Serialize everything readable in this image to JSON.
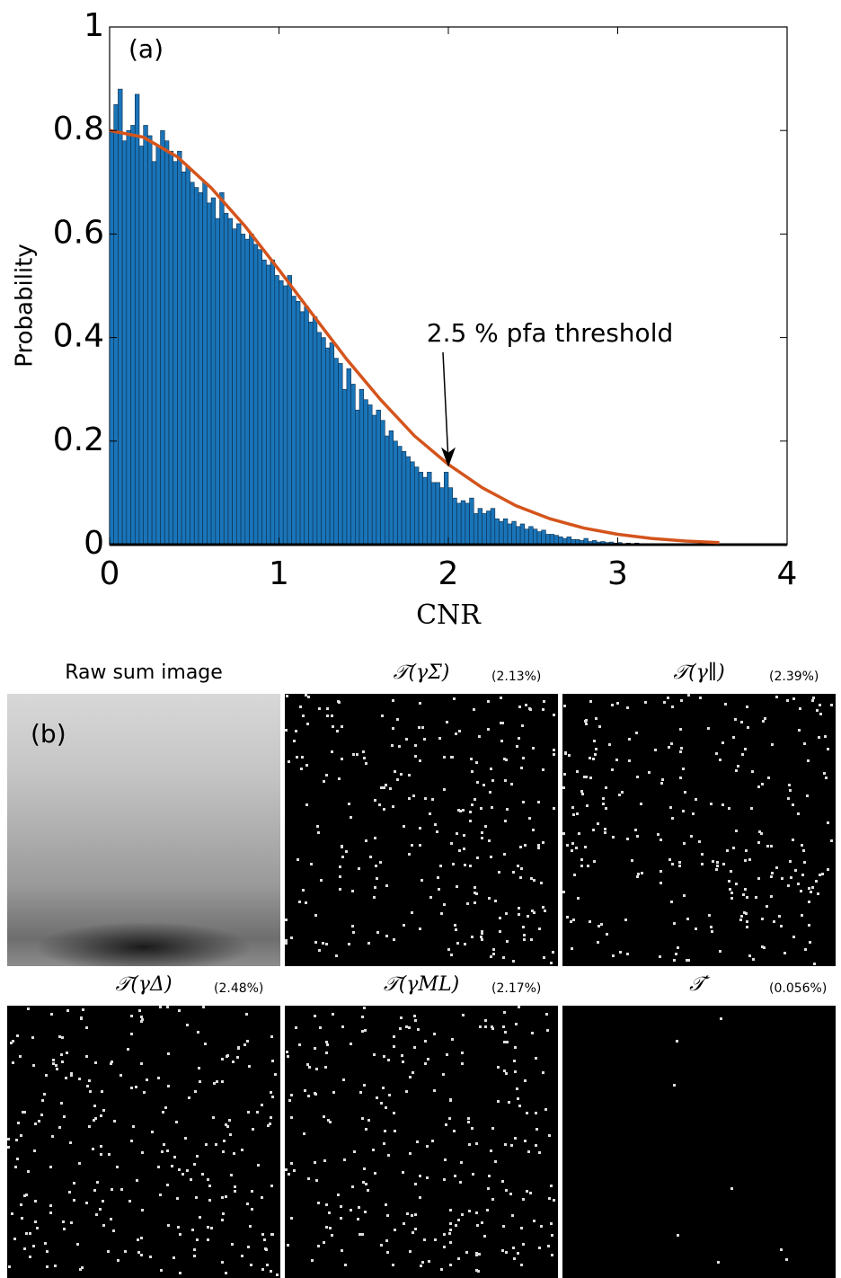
{
  "chart_data": {
    "type": "histogram",
    "panel_label": "(a)",
    "xlabel": "CNR",
    "ylabel": "Probability",
    "annotation": "2.5 % pfa threshold",
    "annotation_xy": [
      2.0,
      0.15
    ],
    "color": "#1a74b8",
    "edge_color": "#0b2d4a",
    "bins": [
      0,
      0.025,
      0.05,
      0.075,
      0.1,
      0.125,
      0.15,
      0.175,
      0.2,
      0.225,
      0.25,
      0.275,
      0.3,
      0.325,
      0.35,
      0.375,
      0.4,
      0.425,
      0.45,
      0.475,
      0.5,
      0.525,
      0.55,
      0.575,
      0.6,
      0.625,
      0.65,
      0.675,
      0.7,
      0.725,
      0.75,
      0.775,
      0.8,
      0.825,
      0.85,
      0.875,
      0.9,
      0.925,
      0.95,
      0.975,
      1,
      1.025,
      1.05,
      1.075,
      1.1,
      1.125,
      1.15,
      1.175,
      1.2,
      1.225,
      1.25,
      1.275,
      1.3,
      1.325,
      1.35,
      1.375,
      1.4,
      1.425,
      1.45,
      1.475,
      1.5,
      1.525,
      1.55,
      1.575,
      1.6,
      1.625,
      1.65,
      1.675,
      1.7,
      1.725,
      1.75,
      1.775,
      1.8,
      1.825,
      1.85,
      1.875,
      1.9,
      1.925,
      1.95,
      1.975,
      2,
      2.025,
      2.05,
      2.075,
      2.1,
      2.125,
      2.15,
      2.175,
      2.2,
      2.225,
      2.25,
      2.275,
      2.3,
      2.325,
      2.35,
      2.375,
      2.4,
      2.425,
      2.45,
      2.475,
      2.5,
      2.525,
      2.55,
      2.575,
      2.6,
      2.625,
      2.65,
      2.675,
      2.7,
      2.725,
      2.75,
      2.775,
      2.8,
      2.825,
      2.85,
      2.875,
      2.9,
      2.925,
      2.95,
      2.975,
      3,
      3.025,
      3.05,
      3.075,
      3.1,
      3.125,
      3.15,
      3.175,
      3.2,
      3.225,
      3.25
    ],
    "values": [
      0.8,
      0.85,
      0.88,
      0.78,
      0.8,
      0.81,
      0.87,
      0.77,
      0.81,
      0.79,
      0.74,
      0.77,
      0.8,
      0.78,
      0.76,
      0.74,
      0.76,
      0.72,
      0.73,
      0.7,
      0.69,
      0.68,
      0.7,
      0.66,
      0.67,
      0.63,
      0.68,
      0.64,
      0.63,
      0.61,
      0.62,
      0.6,
      0.59,
      0.6,
      0.58,
      0.57,
      0.55,
      0.54,
      0.55,
      0.52,
      0.51,
      0.5,
      0.52,
      0.48,
      0.47,
      0.45,
      0.46,
      0.43,
      0.44,
      0.41,
      0.4,
      0.38,
      0.39,
      0.36,
      0.35,
      0.3,
      0.34,
      0.31,
      0.26,
      0.3,
      0.28,
      0.27,
      0.25,
      0.26,
      0.24,
      0.21,
      0.22,
      0.2,
      0.19,
      0.18,
      0.17,
      0.16,
      0.15,
      0.14,
      0.13,
      0.14,
      0.12,
      0.12,
      0.11,
      0.14,
      0.11,
      0.09,
      0.08,
      0.085,
      0.08,
      0.09,
      0.06,
      0.07,
      0.06,
      0.065,
      0.07,
      0.05,
      0.045,
      0.05,
      0.04,
      0.045,
      0.035,
      0.04,
      0.03,
      0.035,
      0.03,
      0.025,
      0.028,
      0.02,
      0.02,
      0.018,
      0.015,
      0.012,
      0.015,
      0.01,
      0.01,
      0.008,
      0.012,
      0.006,
      0.008,
      0.005,
      0.006,
      0.004,
      0.005,
      0.003,
      0.004,
      0.002,
      0.003,
      0.002,
      0.003,
      0.001,
      0.001,
      0.002,
      0.001,
      0.001
    ],
    "curve": {
      "color": "#d4541c",
      "x": [
        0,
        0.2,
        0.4,
        0.6,
        0.8,
        1,
        1.2,
        1.4,
        1.6,
        1.8,
        2,
        2.2,
        2.4,
        2.6,
        2.8,
        3,
        3.2,
        3.4,
        3.6
      ],
      "values": [
        0.8,
        0.787,
        0.749,
        0.689,
        0.615,
        0.531,
        0.444,
        0.358,
        0.28,
        0.21,
        0.155,
        0.11,
        0.075,
        0.05,
        0.032,
        0.02,
        0.012,
        0.007,
        0.004
      ]
    },
    "xlim": [
      0,
      4
    ],
    "ylim": [
      0,
      1
    ],
    "xticks": [
      0,
      1,
      2,
      3,
      4
    ],
    "yticks": [
      0,
      0.2,
      0.4,
      0.6,
      0.8,
      1
    ]
  },
  "panels_label": "(b)",
  "panels": [
    {
      "title": "Raw sum image"
    },
    {
      "title": "𝒯(γΣ)",
      "percent": "(2.13%)"
    },
    {
      "title": "𝒯(γ∥)",
      "percent": "(2.39%)"
    },
    {
      "title": "𝒯(γΔ)",
      "percent": "(2.48%)"
    },
    {
      "title": "𝒯(γML)",
      "percent": "(2.17%)"
    },
    {
      "title": "𝒯′",
      "percent": "(0.056%)"
    }
  ]
}
